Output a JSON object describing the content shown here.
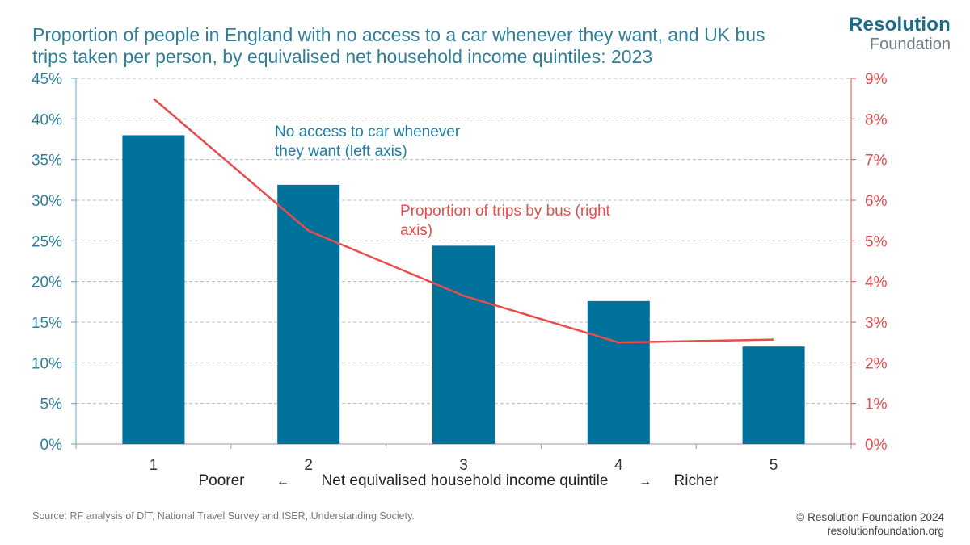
{
  "title_lines": [
    "Proportion of people in England with no access to a car whenever they want, and UK bus",
    "trips taken per person, by equivalised net household income quintiles: 2023"
  ],
  "logo": {
    "main": "Resolution",
    "sub": "Foundation"
  },
  "source": "Source: RF analysis of DfT, National Travel Survey and ISER, Understanding Society.",
  "copyright": "© Resolution Foundation 2024",
  "website": "resolutionfoundation.org",
  "colors": {
    "bar": "#00719a",
    "line": "#e84c4c",
    "title": "#2e7f9a",
    "grid": "#bbbbbb"
  },
  "chart_data": {
    "type": "bar+line",
    "categories": [
      "1",
      "2",
      "3",
      "4",
      "5"
    ],
    "series": [
      {
        "name": "No access to car whenever they want (left axis)",
        "type": "bar",
        "axis": "left",
        "values": [
          38.0,
          31.9,
          24.4,
          17.6,
          12.0
        ]
      },
      {
        "name": "Proportion of trips by bus (right axis)",
        "type": "line",
        "axis": "right",
        "values": [
          8.5,
          5.25,
          3.65,
          2.5,
          2.57
        ]
      }
    ],
    "y_left": {
      "ylim": [
        0,
        45
      ],
      "ticks": [
        "0%",
        "5%",
        "10%",
        "15%",
        "20%",
        "25%",
        "30%",
        "35%",
        "40%",
        "45%"
      ]
    },
    "y_right": {
      "ylim": [
        0,
        9
      ],
      "ticks": [
        "0%",
        "1%",
        "2%",
        "3%",
        "4%",
        "5%",
        "6%",
        "7%",
        "8%",
        "9%"
      ]
    },
    "xlabel": {
      "left": "Poorer",
      "left_arrow": "←",
      "center": "Net equivalised household income quintile",
      "right_arrow": "→",
      "right": "Richer"
    },
    "annotations": [
      {
        "series": 0,
        "lines": [
          "No access to car whenever",
          "they want (left axis)"
        ]
      },
      {
        "series": 1,
        "lines": [
          "Proportion of trips by bus (right",
          "axis)"
        ]
      }
    ],
    "grid": true
  }
}
